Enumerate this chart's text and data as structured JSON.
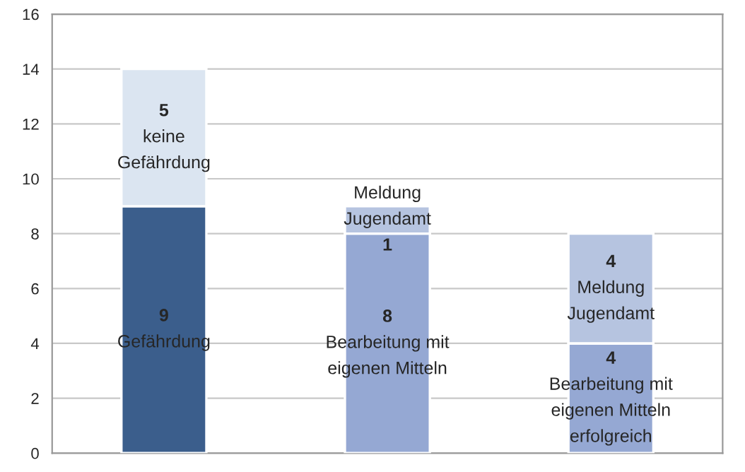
{
  "chart_data": {
    "type": "bar",
    "stacked": true,
    "categories": [
      null,
      null,
      null
    ],
    "series": [
      {
        "colors": [
          "#3b5e8c",
          "#95a8d3",
          "#95a8d3"
        ],
        "values": [
          9,
          8,
          4
        ],
        "value_labels": [
          "9\nGefährdung",
          "8\nBearbeitung mit\neigenen Mitteln",
          "4\nBearbeitung mit\neigenen Mitteln\nerfolgreich"
        ]
      },
      {
        "colors": [
          "#dbe5f1",
          "#b6c4e0",
          "#b6c4e0"
        ],
        "values": [
          5,
          1,
          4
        ],
        "value_labels": [
          "5\nkeine\nGefährdung",
          "Meldung\nJugendamt\n1",
          "4\nMeldung\nJugendamt"
        ]
      }
    ],
    "ylim": [
      0,
      16
    ],
    "yticks": [
      0,
      2,
      4,
      6,
      8,
      10,
      12,
      14,
      16
    ],
    "grid": "y"
  }
}
